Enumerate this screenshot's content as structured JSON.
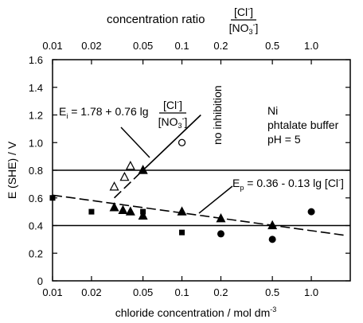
{
  "chart_data": {
    "type": "scatter",
    "x_scale": "log",
    "xlim": [
      0.01,
      2.0
    ],
    "ylim": [
      0,
      1.6
    ],
    "x_ticks": [
      0.01,
      0.02,
      0.05,
      0.1,
      0.2,
      0.5,
      1.0
    ],
    "x_tick_labels": [
      "0.01",
      "0.02",
      "0.05",
      "0.1",
      "0.2",
      "0.5",
      "1.0"
    ],
    "top_ticks": [
      0.01,
      0.02,
      0.05,
      0.1,
      0.2,
      0.5,
      1.0
    ],
    "top_tick_labels": [
      "0.01",
      "0.02",
      "0.05",
      "0.1",
      "0.2",
      "0.5",
      "1.0"
    ],
    "y_ticks": [
      0,
      0.2,
      0.4,
      0.6,
      0.8,
      1.0,
      1.2,
      1.4,
      1.6
    ],
    "y_tick_labels": [
      "0",
      "0.2",
      "0.4",
      "0.6",
      "0.8",
      "1.0",
      "1.2",
      "1.4",
      "1.6"
    ],
    "xlabel": "chloride concentration / mol dm",
    "xlabel_sup": "-3",
    "ylabel": "E (SHE) / V",
    "top_label": "concentration ratio",
    "top_label_num": "[Cl",
    "top_label_num_sup": "-",
    "top_label_num_end": "]",
    "top_label_den": "[NO",
    "top_label_den_sub": "3",
    "top_label_den_sup": "-",
    "top_label_den_end": "]",
    "grid": false,
    "hlines": [
      0.8,
      0.4
    ],
    "series": [
      {
        "marker": "open-triangle",
        "points": [
          [
            0.03,
            0.68
          ],
          [
            0.036,
            0.75
          ],
          [
            0.04,
            0.83
          ],
          [
            0.05,
            0.8
          ]
        ]
      },
      {
        "marker": "filled-triangle",
        "points": [
          [
            0.03,
            0.53
          ],
          [
            0.035,
            0.51
          ],
          [
            0.04,
            0.5
          ],
          [
            0.05,
            0.47
          ],
          [
            0.05,
            0.8
          ],
          [
            0.1,
            0.5
          ],
          [
            0.2,
            0.45
          ],
          [
            0.5,
            0.4
          ]
        ]
      },
      {
        "marker": "filled-square",
        "points": [
          [
            0.01,
            0.6
          ],
          [
            0.02,
            0.5
          ],
          [
            0.05,
            0.5
          ],
          [
            0.1,
            0.35
          ]
        ]
      },
      {
        "marker": "open-circle",
        "points": [
          [
            0.1,
            1.0
          ]
        ]
      },
      {
        "marker": "filled-circle",
        "points": [
          [
            0.2,
            0.34
          ],
          [
            0.5,
            0.3
          ],
          [
            1.0,
            0.5
          ]
        ]
      }
    ],
    "fit_lines": [
      {
        "style": "dashed",
        "points": [
          [
            0.01,
            0.62
          ],
          [
            1.8,
            0.33
          ]
        ]
      },
      {
        "style": "dashed",
        "points": [
          [
            0.03,
            0.6
          ],
          [
            0.05,
            0.8
          ]
        ]
      },
      {
        "style": "solid",
        "points": [
          [
            0.05,
            0.8
          ],
          [
            0.14,
            1.2
          ]
        ]
      }
    ],
    "annotations": {
      "eq_i_main": "E",
      "eq_i_sub": "i",
      "eq_i_rest": " = 1.78 + 0.76 lg",
      "eq_i_num": "[Cl",
      "eq_i_num_sup": "-",
      "eq_i_num_end": "]",
      "eq_i_den": "[NO",
      "eq_i_den_sub": "3",
      "eq_i_den_sup": "-",
      "eq_i_den_end": "]",
      "eq_p_main": "E",
      "eq_p_sub": "p",
      "eq_p_rest": " = 0.36 - 0.13 lg [Cl",
      "eq_p_sup": "-",
      "eq_p_end": "]",
      "no_inhibition": "no inhibition",
      "condition_1": "Ni",
      "condition_2": "phtalate buffer",
      "condition_3": "pH = 5"
    }
  }
}
